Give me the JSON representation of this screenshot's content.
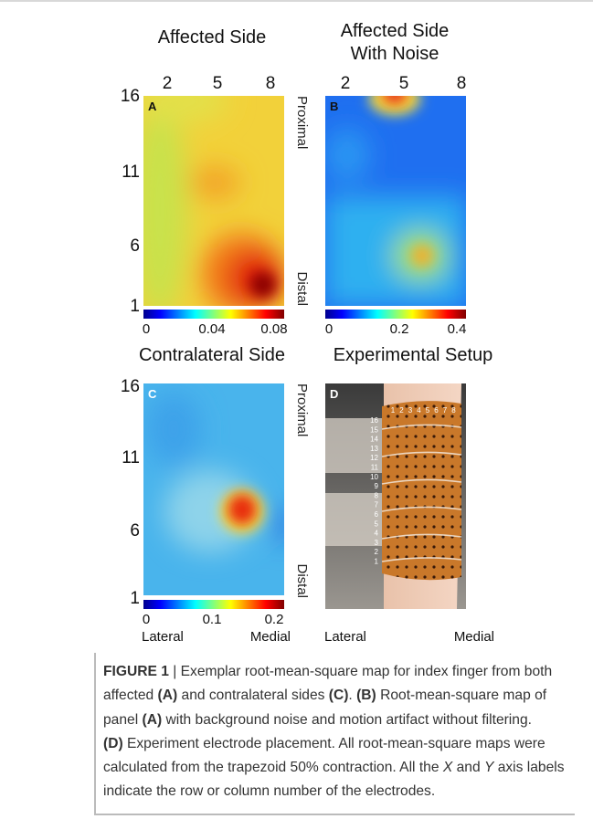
{
  "panels": [
    {
      "label": "A",
      "title_lines": [
        "Affected Side"
      ],
      "x_ticks": [
        "2",
        "5",
        "8"
      ],
      "y_ticks": [
        "16",
        "11",
        "6",
        "1"
      ],
      "colorbar_ticks": [
        "0",
        "0.04",
        "0.08"
      ]
    },
    {
      "label": "B",
      "title_lines": [
        "Affected Side",
        "With Noise"
      ],
      "x_ticks": [
        "2",
        "5",
        "8"
      ],
      "colorbar_ticks": [
        "0",
        "0.2",
        "0.4"
      ]
    },
    {
      "label": "C",
      "title_lines": [
        "Contralateral Side"
      ],
      "y_ticks": [
        "16",
        "11",
        "6",
        "1"
      ],
      "colorbar_ticks": [
        "0",
        "0.1",
        "0.2"
      ]
    },
    {
      "label": "D",
      "title_lines": [
        "Experimental Setup"
      ],
      "row_numbers": [
        "16",
        "15",
        "14",
        "13",
        "12",
        "11",
        "10",
        "9",
        "8",
        "7",
        "6",
        "5",
        "4",
        "3",
        "2",
        "1"
      ],
      "column_numbers": [
        "1",
        "2",
        "3",
        "4",
        "5",
        "6",
        "7",
        "8"
      ]
    }
  ],
  "side_labels": [
    [
      "Proximal",
      "Distal"
    ],
    [
      "Proximal",
      "Distal"
    ]
  ],
  "direction_labels": [
    [
      "Lateral",
      "Medial"
    ],
    [
      "Lateral",
      "Medial"
    ]
  ],
  "caption": {
    "segments": [
      "FIGURE 1",
      " | Exemplar root-mean-square map for index finger from both affected ",
      "(A)",
      " and contralateral sides ",
      "(C)",
      ". ",
      "(B)",
      " Root-mean-square map of panel ",
      "(A)",
      " with background noise and motion artifact without filtering.",
      "(D)",
      " Experiment electrode placement. All root-mean-square maps were calculated from the trapezoid 50% contraction. All the ",
      "X",
      " and ",
      "Y",
      " axis labels indicate the row or column number of the electrodes."
    ]
  }
}
